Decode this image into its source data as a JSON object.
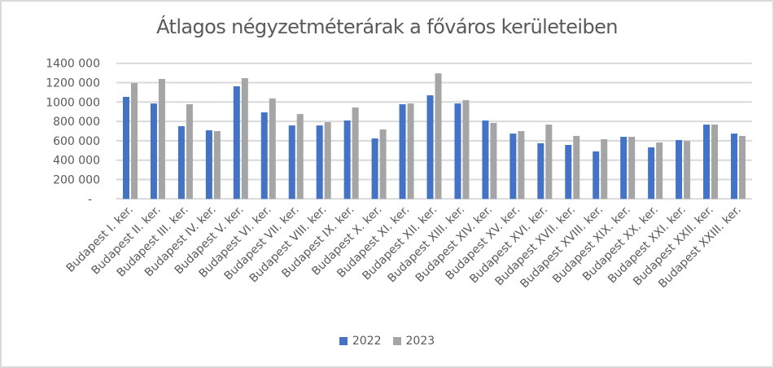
{
  "chart_data": {
    "type": "bar",
    "title": "Átlagos négyzetméterárak  a főváros kerületeiben",
    "xlabel": "",
    "ylabel": "",
    "ylim": [
      0,
      1400000
    ],
    "yticks": [
      0,
      200000,
      400000,
      600000,
      800000,
      1000000,
      1200000,
      1400000
    ],
    "ytick_labels": [
      "-",
      "200 000",
      "400 000",
      "600 000",
      "800 000",
      "1000 000",
      "1200 000",
      "1400 000"
    ],
    "grid": true,
    "legend_position": "bottom",
    "categories": [
      "Budapest I. ker.",
      "Budapest II. ker.",
      "Budapest III. ker.",
      "Budapest IV. ker.",
      "Budapest V. ker.",
      "Budapest VI. ker.",
      "Budapest VII. ker.",
      "Budapest VIII. ker.",
      "Budapest IX. ker.",
      "Budapest X. ker.",
      "Budapest XI. ker.",
      "Budapest XII. ker.",
      "Budapest XIII. ker.",
      "Budapest XIV. ker.",
      "Budapest XV. ker.",
      "Budapest XVI. ker.",
      "Budapest XVII. ker.",
      "Budapest XVIII. ker.",
      "Budapest XIX. ker.",
      "Budapest XX. ker.",
      "Budapest XXI. ker.",
      "Budapest XXII. ker.",
      "Budapest XXIII. ker."
    ],
    "series": [
      {
        "name": "2022",
        "color": "#4472c4",
        "values": [
          1053000,
          985000,
          750000,
          708000,
          1162000,
          893000,
          758000,
          758000,
          809000,
          624000,
          977000,
          1069000,
          985000,
          809000,
          674000,
          574000,
          557000,
          490000,
          641000,
          532000,
          607000,
          767000,
          674000
        ]
      },
      {
        "name": "2023",
        "color": "#a5a5a5",
        "values": [
          1196000,
          1238000,
          977000,
          700000,
          1246000,
          1036000,
          876000,
          792000,
          943000,
          717000,
          985000,
          1296000,
          1019000,
          784000,
          700000,
          767000,
          650000,
          616000,
          641000,
          582000,
          599000,
          767000,
          650000
        ]
      }
    ]
  },
  "legend": {
    "items": [
      {
        "label": "2022",
        "color": "#4472c4"
      },
      {
        "label": "2023",
        "color": "#a5a5a5"
      }
    ]
  }
}
